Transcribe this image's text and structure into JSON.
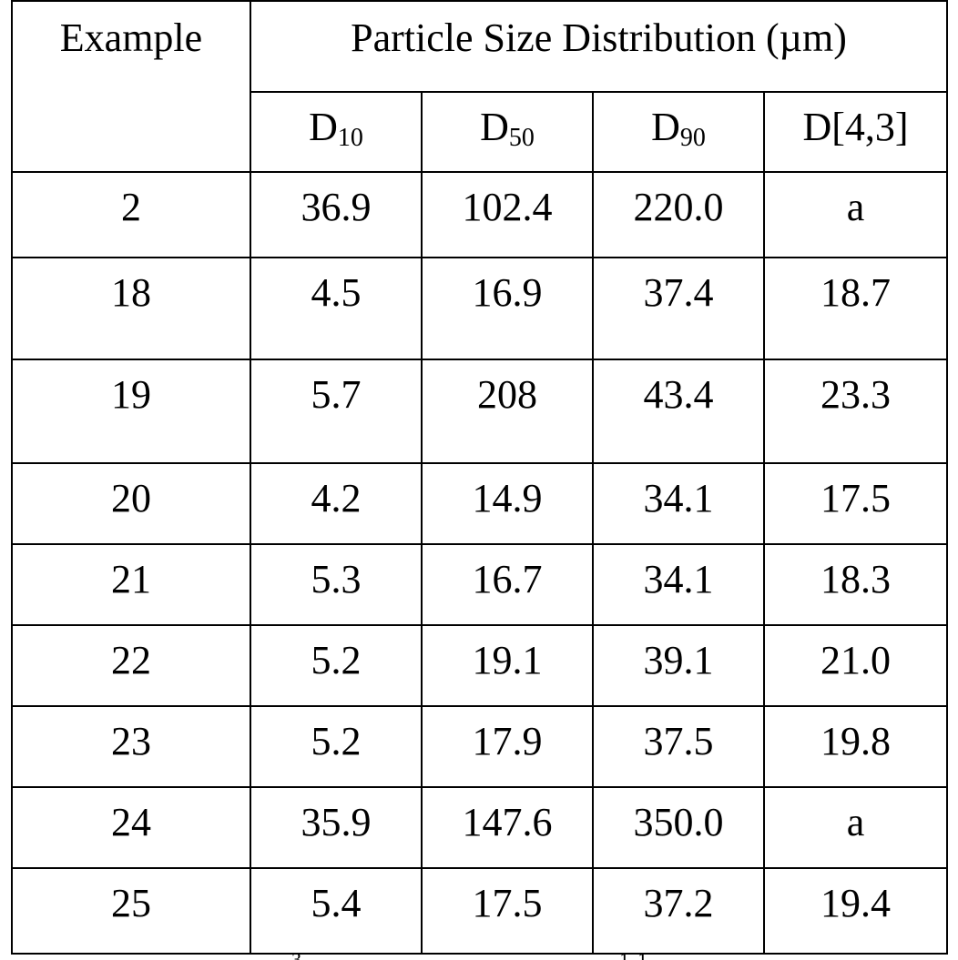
{
  "table": {
    "example_header": "Example",
    "group_header": "Particle Size Distribution (µm)",
    "columns": [
      {
        "base": "D",
        "sub": "10"
      },
      {
        "base": "D",
        "sub": "50"
      },
      {
        "base": "D",
        "sub": "90"
      },
      {
        "base": "D[4,3]",
        "sub": ""
      }
    ],
    "rows": [
      [
        "2",
        "36.9",
        "102.4",
        "220.0",
        "a"
      ],
      [
        "18",
        "4.5",
        "16.9",
        "37.4",
        "18.7"
      ],
      [
        "19",
        "5.7",
        "208",
        "43.4",
        "23.3"
      ],
      [
        "20",
        "4.2",
        "14.9",
        "34.1",
        "17.5"
      ],
      [
        "21",
        "5.3",
        "16.7",
        "34.1",
        "18.3"
      ],
      [
        "22",
        "5.2",
        "19.1",
        "39.1",
        "21.0"
      ],
      [
        "23",
        "5.2",
        "17.9",
        "37.5",
        "19.8"
      ],
      [
        "24",
        "35.9",
        "147.6",
        "350.0",
        "a"
      ],
      [
        "25",
        "5.4",
        "17.5",
        "37.2",
        "19.4"
      ]
    ]
  }
}
